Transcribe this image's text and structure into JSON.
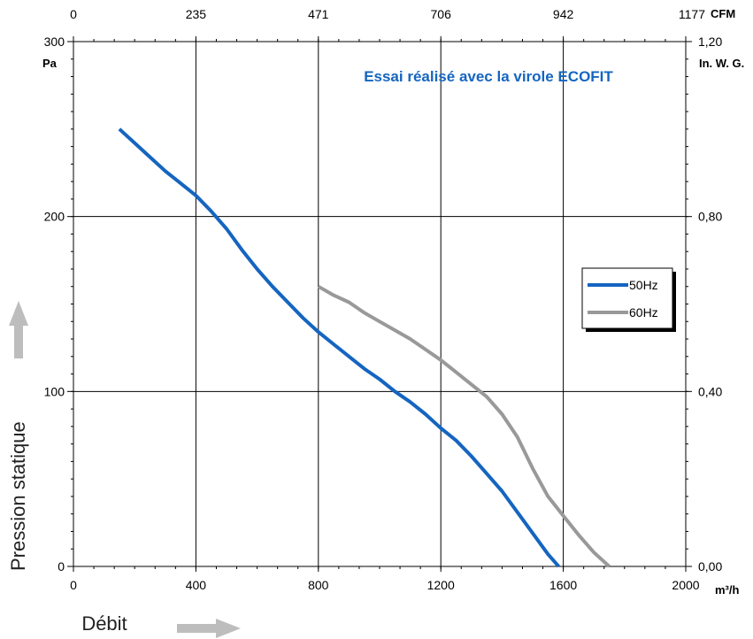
{
  "chart_data": {
    "type": "line",
    "title": "Essai réalisé avec la virole ECOFIT",
    "xlabel": "Débit",
    "ylabel": "Pression statique",
    "x_unit": "m³/h",
    "y_unit": "Pa",
    "x2_unit": "CFM",
    "y2_unit": "In. W. G.",
    "xlim": [
      0,
      2000
    ],
    "ylim": [
      0,
      300
    ],
    "x_ticks": [
      "0",
      "400",
      "800",
      "1200",
      "1600",
      "2000"
    ],
    "y_ticks": [
      "0",
      "100",
      "200",
      "300"
    ],
    "x2_ticks": [
      "0",
      "235",
      "471",
      "706",
      "942",
      "1177"
    ],
    "y2_ticks": [
      "0,00",
      "0,40",
      "0,80",
      "1,20"
    ],
    "grid": true,
    "legend_position": "right",
    "series": [
      {
        "name": "50Hz",
        "color": "#1565c0",
        "points": [
          [
            150,
            250
          ],
          [
            200,
            242
          ],
          [
            250,
            234
          ],
          [
            300,
            226
          ],
          [
            350,
            219
          ],
          [
            400,
            212
          ],
          [
            450,
            203
          ],
          [
            500,
            193
          ],
          [
            550,
            181
          ],
          [
            600,
            170
          ],
          [
            650,
            160
          ],
          [
            700,
            151
          ],
          [
            750,
            142
          ],
          [
            800,
            134
          ],
          [
            850,
            127
          ],
          [
            900,
            120
          ],
          [
            950,
            113
          ],
          [
            1000,
            107
          ],
          [
            1050,
            100
          ],
          [
            1100,
            94
          ],
          [
            1150,
            87
          ],
          [
            1200,
            79
          ],
          [
            1250,
            72
          ],
          [
            1300,
            63
          ],
          [
            1350,
            53
          ],
          [
            1400,
            43
          ],
          [
            1450,
            31
          ],
          [
            1500,
            19
          ],
          [
            1550,
            7
          ],
          [
            1585,
            0
          ]
        ]
      },
      {
        "name": "60Hz",
        "color": "#999999",
        "points": [
          [
            800,
            160
          ],
          [
            850,
            155
          ],
          [
            900,
            151
          ],
          [
            950,
            145
          ],
          [
            1000,
            140
          ],
          [
            1050,
            135
          ],
          [
            1100,
            130
          ],
          [
            1150,
            124
          ],
          [
            1200,
            118
          ],
          [
            1250,
            111
          ],
          [
            1300,
            104
          ],
          [
            1350,
            97
          ],
          [
            1400,
            87
          ],
          [
            1450,
            74
          ],
          [
            1500,
            56
          ],
          [
            1550,
            40
          ],
          [
            1600,
            29
          ],
          [
            1650,
            18
          ],
          [
            1700,
            8
          ],
          [
            1750,
            0
          ]
        ]
      }
    ]
  }
}
